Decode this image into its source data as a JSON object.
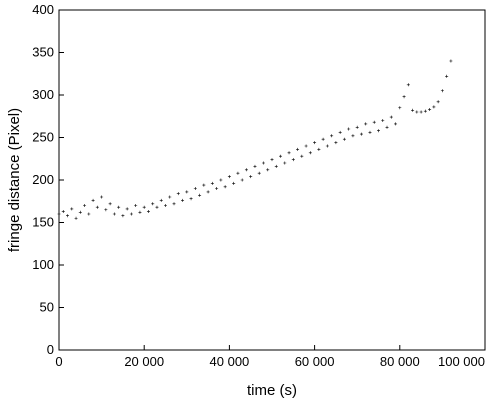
{
  "chart_data": {
    "type": "scatter",
    "xlabel": "time (s)",
    "ylabel": "fringe distance (Pixel)",
    "xlim": [
      0,
      100000
    ],
    "ylim": [
      0,
      400
    ],
    "x_ticks": [
      0,
      20000,
      40000,
      60000,
      80000,
      100000
    ],
    "x_tick_labels": [
      "0",
      "20 000",
      "40 000",
      "60 000",
      "80 000",
      "100 000"
    ],
    "y_ticks": [
      0,
      50,
      100,
      150,
      200,
      250,
      300,
      350,
      400
    ],
    "y_tick_labels": [
      "0",
      "50",
      "100",
      "150",
      "200",
      "250",
      "300",
      "350",
      "400"
    ],
    "marker": "+",
    "marker_color": "#000000",
    "series": [
      {
        "description_of_trend": "main band",
        "points": [
          [
            0,
            160
          ],
          [
            1000,
            163
          ],
          [
            2000,
            158
          ],
          [
            3000,
            166
          ],
          [
            4000,
            155
          ],
          [
            5000,
            162
          ],
          [
            6000,
            170
          ],
          [
            7000,
            160
          ],
          [
            8000,
            176
          ],
          [
            9000,
            168
          ],
          [
            10000,
            180
          ],
          [
            11000,
            165
          ],
          [
            12000,
            172
          ],
          [
            13000,
            160
          ],
          [
            14000,
            168
          ],
          [
            15000,
            158
          ],
          [
            16000,
            166
          ],
          [
            17000,
            160
          ],
          [
            18000,
            170
          ],
          [
            19000,
            162
          ],
          [
            20000,
            168
          ],
          [
            21000,
            163
          ],
          [
            22000,
            172
          ],
          [
            23000,
            168
          ],
          [
            24000,
            176
          ],
          [
            25000,
            170
          ],
          [
            26000,
            180
          ],
          [
            27000,
            172
          ],
          [
            28000,
            184
          ],
          [
            29000,
            176
          ],
          [
            30000,
            186
          ],
          [
            31000,
            178
          ],
          [
            32000,
            190
          ],
          [
            33000,
            182
          ],
          [
            34000,
            194
          ],
          [
            35000,
            186
          ],
          [
            36000,
            196
          ],
          [
            37000,
            190
          ],
          [
            38000,
            200
          ],
          [
            39000,
            192
          ],
          [
            40000,
            204
          ],
          [
            41000,
            196
          ],
          [
            42000,
            208
          ],
          [
            43000,
            200
          ],
          [
            44000,
            212
          ],
          [
            45000,
            204
          ],
          [
            46000,
            216
          ],
          [
            47000,
            208
          ],
          [
            48000,
            220
          ],
          [
            49000,
            212
          ],
          [
            50000,
            224
          ],
          [
            51000,
            216
          ],
          [
            52000,
            228
          ],
          [
            53000,
            220
          ],
          [
            54000,
            232
          ],
          [
            55000,
            224
          ],
          [
            56000,
            236
          ],
          [
            57000,
            228
          ],
          [
            58000,
            240
          ],
          [
            59000,
            232
          ],
          [
            60000,
            244
          ],
          [
            61000,
            236
          ],
          [
            62000,
            248
          ],
          [
            63000,
            240
          ],
          [
            64000,
            252
          ],
          [
            65000,
            244
          ],
          [
            66000,
            256
          ],
          [
            67000,
            248
          ],
          [
            68000,
            260
          ],
          [
            69000,
            252
          ],
          [
            70000,
            262
          ],
          [
            71000,
            254
          ],
          [
            72000,
            266
          ],
          [
            73000,
            256
          ],
          [
            74000,
            268
          ],
          [
            75000,
            258
          ],
          [
            76000,
            270
          ],
          [
            77000,
            262
          ],
          [
            78000,
            274
          ],
          [
            79000,
            266
          ],
          [
            80000,
            285
          ],
          [
            81000,
            298
          ],
          [
            82000,
            312
          ],
          [
            83000,
            282
          ],
          [
            84000,
            280
          ],
          [
            85000,
            280
          ],
          [
            86000,
            281
          ],
          [
            87000,
            283
          ],
          [
            88000,
            286
          ],
          [
            89000,
            292
          ],
          [
            90000,
            305
          ],
          [
            91000,
            322
          ],
          [
            92000,
            340
          ]
        ]
      }
    ]
  }
}
